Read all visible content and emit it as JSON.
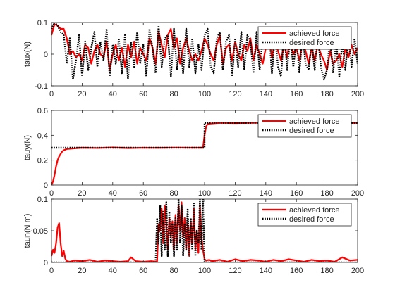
{
  "colors": {
    "achieved": "#ff0000",
    "desired": "#000000",
    "axis": "#262626",
    "background": "#ffffff"
  },
  "chart_data": [
    {
      "type": "line",
      "ylabel": "taux(N)",
      "xlim": [
        0,
        200
      ],
      "ylim": [
        -0.1,
        0.1
      ],
      "xticks": [
        "0",
        "20",
        "40",
        "60",
        "80",
        "100",
        "120",
        "140",
        "160",
        "180",
        "200"
      ],
      "yticks": [
        "-0.1",
        "0",
        "0.1"
      ],
      "ytick_values": [
        -0.1,
        0,
        0.1
      ],
      "grid": false,
      "legend_position": "top-right",
      "series": [
        {
          "name": "achieved force",
          "style": "solid",
          "x": [
            0,
            2,
            4,
            6,
            8,
            10,
            12,
            14,
            16,
            18,
            20,
            22,
            24,
            26,
            28,
            30,
            32,
            34,
            36,
            38,
            40,
            42,
            44,
            46,
            48,
            50,
            52,
            54,
            56,
            58,
            60,
            62,
            64,
            66,
            68,
            70,
            72,
            74,
            76,
            78,
            80,
            82,
            84,
            86,
            88,
            90,
            92,
            94,
            96,
            98,
            100,
            102,
            104,
            106,
            108,
            110,
            112,
            114,
            116,
            118,
            120,
            122,
            124,
            126,
            128,
            130,
            132,
            134,
            136,
            138,
            140,
            142,
            144,
            146,
            148,
            150,
            152,
            154,
            156,
            158,
            160,
            162,
            164,
            166,
            168,
            170,
            172,
            174,
            176,
            178,
            180,
            182,
            184,
            186,
            188,
            190,
            192,
            194,
            196,
            198,
            200
          ],
          "y": [
            0.06,
            0.095,
            0.09,
            0.08,
            0.08,
            0.05,
            0.0,
            0.01,
            -0.01,
            0.0,
            -0.02,
            0.03,
            0.02,
            -0.03,
            0.01,
            0.03,
            0.0,
            -0.01,
            0.04,
            -0.05,
            0.0,
            0.03,
            -0.02,
            0.02,
            -0.04,
            0.03,
            -0.01,
            0.04,
            -0.03,
            0.02,
            0.0,
            -0.02,
            0.05,
            0.02,
            -0.03,
            0.07,
            0.03,
            -0.01,
            0.06,
            0.08,
            0.02,
            0.05,
            -0.03,
            0.02,
            0.05,
            0.01,
            -0.02,
            0.0,
            -0.02,
            0.01,
            0.05,
            0.03,
            0.0,
            -0.02,
            0.03,
            0.06,
            -0.03,
            0.02,
            0.03,
            -0.02,
            0.04,
            0.0,
            -0.02,
            0.03,
            0.01,
            0.05,
            -0.02,
            0.03,
            0.0,
            -0.03,
            0.02,
            0.05,
            -0.01,
            0.04,
            0.01,
            -0.02,
            0.03,
            -0.01,
            0.06,
            0.0,
            0.02,
            -0.02,
            0.04,
            0.01,
            -0.03,
            0.02,
            -0.02,
            0.03,
            0.0,
            -0.02,
            -0.05,
            0.01,
            -0.03,
            -0.02,
            0.0,
            -0.04,
            0.02,
            -0.01,
            0.03,
            0.0,
            0.02
          ]
        },
        {
          "name": "desired force",
          "style": "dotted",
          "x": [
            0,
            2,
            4,
            6,
            8,
            10,
            12,
            14,
            16,
            18,
            20,
            22,
            24,
            26,
            28,
            30,
            32,
            34,
            36,
            38,
            40,
            42,
            44,
            46,
            48,
            50,
            52,
            54,
            56,
            58,
            60,
            62,
            64,
            66,
            68,
            70,
            72,
            74,
            76,
            78,
            80,
            82,
            84,
            86,
            88,
            90,
            92,
            94,
            96,
            98,
            100,
            102,
            104,
            106,
            108,
            110,
            112,
            114,
            116,
            118,
            120,
            122,
            124,
            126,
            128,
            130,
            132,
            134,
            136,
            138,
            140,
            142,
            144,
            146,
            148,
            150,
            152,
            154,
            156,
            158,
            160,
            162,
            164,
            166,
            168,
            170,
            172,
            174,
            176,
            178,
            180,
            182,
            184,
            186,
            188,
            190,
            192,
            194,
            196,
            198,
            200
          ],
          "y": [
            0.08,
            0.1,
            0.09,
            0.07,
            0.06,
            -0.03,
            0.05,
            -0.08,
            -0.02,
            0.06,
            -0.07,
            0.04,
            -0.05,
            0.02,
            0.07,
            -0.04,
            0.04,
            -0.02,
            0.08,
            -0.07,
            0.03,
            -0.03,
            0.05,
            -0.06,
            0.06,
            -0.08,
            0.04,
            -0.04,
            0.07,
            -0.03,
            0.03,
            -0.07,
            0.08,
            0.02,
            -0.06,
            0.09,
            -0.04,
            0.05,
            0.06,
            -0.07,
            0.08,
            -0.05,
            0.04,
            -0.06,
            0.08,
            -0.04,
            0.05,
            -0.06,
            0.03,
            -0.05,
            0.06,
            0.08,
            -0.04,
            -0.06,
            0.05,
            0.07,
            -0.05,
            0.04,
            0.06,
            -0.07,
            0.05,
            -0.04,
            0.07,
            -0.05,
            0.06,
            0.04,
            -0.06,
            0.07,
            -0.05,
            0.05,
            0.03,
            0.08,
            -0.06,
            0.06,
            -0.04,
            -0.07,
            0.08,
            -0.05,
            0.06,
            -0.04,
            0.05,
            -0.06,
            0.07,
            -0.03,
            -0.05,
            0.04,
            -0.05,
            0.06,
            -0.04,
            -0.08,
            -0.05,
            0.05,
            -0.06,
            0.04,
            -0.07,
            0.04,
            -0.05,
            0.06,
            -0.04,
            0.05,
            -0.03
          ]
        }
      ]
    },
    {
      "type": "line",
      "ylabel": "tauy(N)",
      "xlim": [
        0,
        200
      ],
      "ylim": [
        0,
        0.6
      ],
      "xticks": [
        "0",
        "20",
        "40",
        "60",
        "80",
        "100",
        "120",
        "140",
        "160",
        "180",
        "200"
      ],
      "yticks": [
        "0",
        "0.2",
        "0.4",
        "0.6"
      ],
      "ytick_values": [
        0,
        0.2,
        0.4,
        0.6
      ],
      "grid": false,
      "legend_position": "top-right",
      "series": [
        {
          "name": "achieved force",
          "style": "solid",
          "x": [
            0,
            1,
            2,
            3,
            4,
            5,
            6,
            7,
            8,
            9,
            10,
            15,
            20,
            30,
            40,
            50,
            60,
            70,
            80,
            90,
            99,
            100,
            101,
            102,
            104,
            110,
            120,
            130,
            140,
            150,
            160,
            170,
            180,
            190,
            200
          ],
          "y": [
            0.0,
            0.03,
            0.08,
            0.15,
            0.2,
            0.23,
            0.25,
            0.27,
            0.28,
            0.285,
            0.29,
            0.295,
            0.3,
            0.298,
            0.302,
            0.297,
            0.3,
            0.299,
            0.301,
            0.3,
            0.3,
            0.4,
            0.47,
            0.49,
            0.495,
            0.5,
            0.498,
            0.5,
            0.501,
            0.498,
            0.5,
            0.499,
            0.501,
            0.5,
            0.5
          ]
        },
        {
          "name": "desired force",
          "style": "dotted",
          "x": [
            0,
            100,
            100,
            200
          ],
          "y": [
            0.3,
            0.3,
            0.5,
            0.5
          ]
        }
      ]
    },
    {
      "type": "line",
      "ylabel": "taun(N m)",
      "xlim": [
        0,
        200
      ],
      "ylim": [
        0,
        0.1
      ],
      "xticks": [
        "0",
        "20",
        "40",
        "60",
        "80",
        "100",
        "120",
        "140",
        "160",
        "180",
        "200"
      ],
      "yticks": [
        "0",
        "0.05",
        "0.1"
      ],
      "ytick_values": [
        0,
        0.05,
        0.1
      ],
      "grid": false,
      "legend_position": "top-right",
      "series": [
        {
          "name": "achieved force",
          "style": "solid",
          "x": [
            0,
            1,
            2,
            3,
            4,
            5,
            6,
            7,
            8,
            9,
            10,
            12,
            15,
            20,
            25,
            30,
            35,
            40,
            45,
            50,
            52,
            55,
            60,
            65,
            69,
            70,
            71,
            72,
            73,
            74,
            75,
            76,
            77,
            78,
            79,
            80,
            81,
            82,
            83,
            84,
            85,
            86,
            87,
            88,
            89,
            90,
            91,
            92,
            93,
            94,
            95,
            96,
            97,
            98,
            99,
            100,
            101,
            103,
            105,
            110,
            115,
            120,
            125,
            130,
            135,
            140,
            145,
            150,
            155,
            160,
            165,
            170,
            175,
            180,
            185,
            190,
            195,
            200
          ],
          "y": [
            0.01,
            0.02,
            0.015,
            0.03,
            0.055,
            0.062,
            0.03,
            0.01,
            0.018,
            0.006,
            0.002,
            0.001,
            0.003,
            0.002,
            0.004,
            0.001,
            0.003,
            0.002,
            0.001,
            0.002,
            0.008,
            0.002,
            0.001,
            0.002,
            0.001,
            0.06,
            0.05,
            0.085,
            0.03,
            0.09,
            0.06,
            0.02,
            0.07,
            0.04,
            0.065,
            0.02,
            0.075,
            0.03,
            0.09,
            0.05,
            0.095,
            0.04,
            0.07,
            0.02,
            0.06,
            0.01,
            0.065,
            0.03,
            0.085,
            0.02,
            0.05,
            0.015,
            0.09,
            0.04,
            0.02,
            0.005,
            0.003,
            0.004,
            0.002,
            0.004,
            0.001,
            0.005,
            0.002,
            0.004,
            0.003,
            0.001,
            0.004,
            0.002,
            0.005,
            0.003,
            0.001,
            0.004,
            0.002,
            0.003,
            0.001,
            0.008,
            0.003,
            0.004
          ]
        },
        {
          "name": "desired force",
          "style": "dotted",
          "x": [
            0,
            68,
            69,
            70,
            71,
            72,
            73,
            74,
            75,
            76,
            77,
            78,
            79,
            80,
            81,
            82,
            83,
            84,
            85,
            86,
            87,
            88,
            89,
            90,
            91,
            92,
            93,
            94,
            95,
            96,
            97,
            98,
            99,
            100,
            200
          ],
          "y": [
            0,
            0,
            0.07,
            0.03,
            0.09,
            0.01,
            0.08,
            0.02,
            0.095,
            0.01,
            0.08,
            0.03,
            0.06,
            0.01,
            0.07,
            0.02,
            0.1,
            0.03,
            0.09,
            0.01,
            0.06,
            0.02,
            0.085,
            0.01,
            0.07,
            0.02,
            0.095,
            0.01,
            0.05,
            0.03,
            0.1,
            0.02,
            0.1,
            0,
            0
          ]
        }
      ]
    }
  ]
}
